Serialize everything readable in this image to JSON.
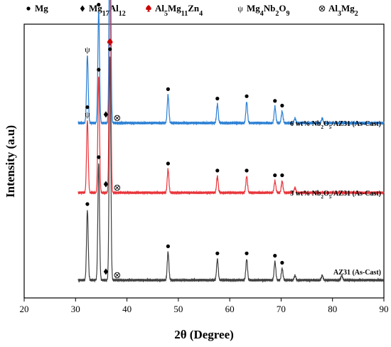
{
  "chart_data": {
    "type": "line",
    "xlabel": "2θ (Degree)",
    "ylabel": "Intensity (a.u)",
    "xlim": [
      20,
      90
    ],
    "xticks": [
      20,
      30,
      40,
      50,
      60,
      70,
      80,
      90
    ],
    "y_ticks_shown": false,
    "grid": false,
    "legend_placement": "top-left, above plot",
    "legend": [
      {
        "marker": "circle",
        "symbol_text": "●",
        "color": "#000000",
        "label": "Mg",
        "html": "Mg"
      },
      {
        "marker": "diamond",
        "symbol_text": "♦",
        "color": "#000000",
        "label": "Mg17Al12",
        "html": "Mg<tspan baseline-shift='sub' font-size='10'>17</tspan>Al<tspan baseline-shift='sub' font-size='10'>12</tspan>"
      },
      {
        "marker": "spade",
        "symbol_text": "♠",
        "color": "#cc0000",
        "label": "Al5Mg11Zn4",
        "html": "Al<tspan baseline-shift='sub' font-size='10'>5</tspan>Mg<tspan baseline-shift='sub' font-size='10'>11</tspan>Zn<tspan baseline-shift='sub' font-size='10'>4</tspan>"
      },
      {
        "marker": "psi",
        "symbol_text": "ψ",
        "color": "#000000",
        "label": "Mg4Nb2O9",
        "html": "Mg<tspan baseline-shift='sub' font-size='10'>4</tspan>Nb<tspan baseline-shift='sub' font-size='10'>2</tspan>O<tspan baseline-shift='sub' font-size='10'>9</tspan>"
      },
      {
        "marker": "otimes",
        "symbol_text": "⊗",
        "color": "#000000",
        "label": "Al3Mg2",
        "html": "Al<tspan baseline-shift='sub' font-size='10'>3</tspan>Mg<tspan baseline-shift='sub' font-size='10'>2</tspan>"
      }
    ],
    "series": [
      {
        "name": "AZ31 (As-Cast)",
        "label_html": "AZ31 (As-Cast)",
        "color": "#404040",
        "peaks": [
          {
            "x": 32.3,
            "h": 0.3
          },
          {
            "x": 34.5,
            "h": 0.5
          },
          {
            "x": 36.7,
            "h": 0.96
          },
          {
            "x": 48.0,
            "h": 0.12
          },
          {
            "x": 57.6,
            "h": 0.09
          },
          {
            "x": 63.3,
            "h": 0.09
          },
          {
            "x": 68.8,
            "h": 0.08
          },
          {
            "x": 70.2,
            "h": 0.05
          },
          {
            "x": 72.7,
            "h": 0.02
          },
          {
            "x": 78.0,
            "h": 0.02
          },
          {
            "x": 81.8,
            "h": 0.02
          }
        ],
        "markers": [
          {
            "x": 32.3,
            "m": "circle"
          },
          {
            "x": 34.5,
            "m": "circle"
          },
          {
            "x": 36.7,
            "m": "circle"
          },
          {
            "x": 35.9,
            "m": "diamond"
          },
          {
            "x": 36.7,
            "m": "spade"
          },
          {
            "x": 38.1,
            "m": "otimes"
          },
          {
            "x": 48.0,
            "m": "circle"
          },
          {
            "x": 57.6,
            "m": "circle"
          },
          {
            "x": 63.3,
            "m": "circle"
          },
          {
            "x": 68.8,
            "m": "circle"
          },
          {
            "x": 70.2,
            "m": "circle"
          }
        ]
      },
      {
        "name": "3 wt% Nb2O5/AZ31 (As-Cast)",
        "label_html": "3 wt% Nb<tspan baseline-shift='sub' font-size='7'>2</tspan>O<tspan baseline-shift='sub' font-size='7'>5</tspan>/AZ31 (As-Cast)",
        "color": "#e8353b",
        "peaks": [
          {
            "x": 32.3,
            "h": 0.31
          },
          {
            "x": 34.5,
            "h": 0.5
          },
          {
            "x": 36.7,
            "h": 1.0
          },
          {
            "x": 48.0,
            "h": 0.1
          },
          {
            "x": 57.6,
            "h": 0.07
          },
          {
            "x": 63.3,
            "h": 0.07
          },
          {
            "x": 68.8,
            "h": 0.05
          },
          {
            "x": 70.2,
            "h": 0.05
          },
          {
            "x": 72.7,
            "h": 0.02
          }
        ],
        "markers": [
          {
            "x": 32.3,
            "m": "psi"
          },
          {
            "x": 32.3,
            "m": "circle"
          },
          {
            "x": 34.5,
            "m": "circle"
          },
          {
            "x": 36.7,
            "m": "circle"
          },
          {
            "x": 35.9,
            "m": "diamond"
          },
          {
            "x": 38.1,
            "m": "otimes"
          },
          {
            "x": 48.0,
            "m": "circle"
          },
          {
            "x": 57.6,
            "m": "circle"
          },
          {
            "x": 63.3,
            "m": "circle"
          },
          {
            "x": 68.8,
            "m": "circle"
          },
          {
            "x": 70.2,
            "m": "circle"
          }
        ]
      },
      {
        "name": "6 wt% Nb2O5/AZ31 (As-Cast)",
        "label_html": "6 wt% Nb<tspan baseline-shift='sub' font-size='7'>2</tspan>O<tspan baseline-shift='sub' font-size='7'>5</tspan>/AZ31 (As-Cast)",
        "color": "#2a7fd4",
        "peaks": [
          {
            "x": 32.3,
            "h": 0.29
          },
          {
            "x": 34.5,
            "h": 0.48
          },
          {
            "x": 36.7,
            "h": 1.0
          },
          {
            "x": 48.0,
            "h": 0.12
          },
          {
            "x": 57.6,
            "h": 0.08
          },
          {
            "x": 63.3,
            "h": 0.09
          },
          {
            "x": 68.8,
            "h": 0.07
          },
          {
            "x": 70.2,
            "h": 0.05
          },
          {
            "x": 72.7,
            "h": 0.02
          },
          {
            "x": 78.0,
            "h": 0.02
          }
        ],
        "markers": [
          {
            "x": 32.3,
            "m": "psi"
          },
          {
            "x": 34.5,
            "m": "circle"
          },
          {
            "x": 36.7,
            "m": "circle"
          },
          {
            "x": 36.7,
            "m": "spade"
          },
          {
            "x": 35.9,
            "m": "diamond"
          },
          {
            "x": 38.1,
            "m": "otimes"
          },
          {
            "x": 48.0,
            "m": "circle"
          },
          {
            "x": 57.6,
            "m": "circle"
          },
          {
            "x": 63.3,
            "m": "circle"
          },
          {
            "x": 68.8,
            "m": "circle"
          },
          {
            "x": 70.2,
            "m": "circle"
          }
        ]
      }
    ]
  }
}
